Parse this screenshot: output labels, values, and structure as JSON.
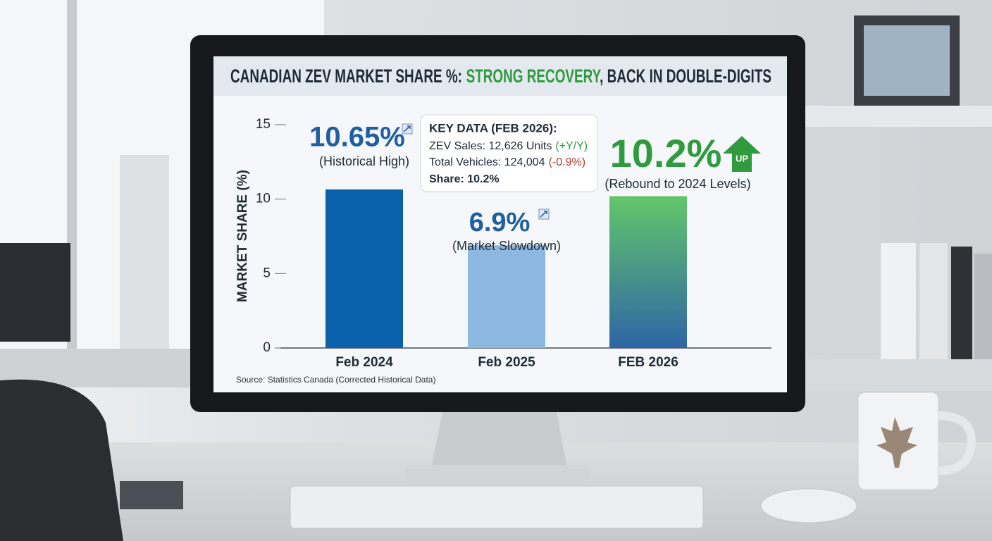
{
  "chart_data": {
    "type": "bar",
    "title": [
      "CANADIAN ZEV MARKET SHARE %:",
      "STRONG RECOVERY",
      ", BACK IN DOUBLE-DIGITS"
    ],
    "title_colors": [
      "#1f2a36",
      "#2f9a3e",
      "#1f2a36"
    ],
    "y_label": "MARKET SHARE (%)",
    "categories": [
      "Feb 2024",
      "Feb 2025",
      "FEB 2026"
    ],
    "values": [
      10.65,
      6.9,
      10.2
    ],
    "value_labels": [
      "10.65%",
      "6.9%",
      "10.2%"
    ],
    "value_label_colors": [
      "#1f5f9e",
      "#1f5f9e",
      "#2f9a3e"
    ],
    "notes": [
      "(Historical High)",
      "(Market Slowdown)",
      "(Rebound to 2024 Levels)"
    ],
    "colors": [
      "#0b62ac",
      "#8db8df",
      [
        "#63c66a",
        "#2e65a6"
      ]
    ],
    "ylim": [
      0,
      15
    ],
    "yticks": [
      0,
      5,
      10,
      15
    ],
    "badge": "UP",
    "key_data": {
      "heading": "KEY DATA (FEB 2026):",
      "lines": [
        [
          "ZEV Sales: 12,626 Units",
          "(+Y/Y)"
        ],
        [
          "Total Vehicles: 124,004",
          "(-0.9%)"
        ]
      ],
      "line_colors": [
        "#2f9a3e",
        "#b03a2e"
      ],
      "share": "Share: 10.2%"
    },
    "source": "Source: Statistics Canada (Corrected Historical Data)"
  }
}
